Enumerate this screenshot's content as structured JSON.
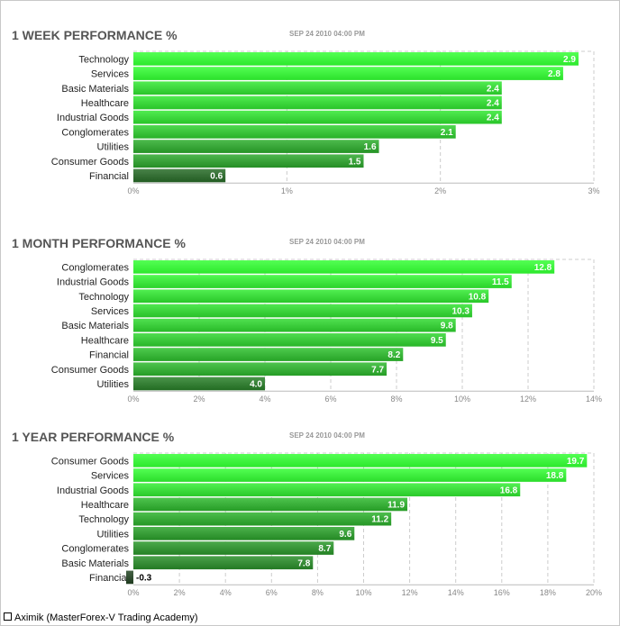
{
  "chart_data": [
    {
      "type": "bar",
      "orientation": "horizontal",
      "title": "1 WEEK PERFORMANCE %",
      "subtitle": "SEP 24 2010 04:00 PM",
      "categories": [
        "Technology",
        "Services",
        "Basic Materials",
        "Healthcare",
        "Industrial Goods",
        "Conglomerates",
        "Utilities",
        "Consumer Goods",
        "Financial"
      ],
      "values": [
        2.9,
        2.8,
        2.4,
        2.4,
        2.4,
        2.1,
        1.6,
        1.5,
        0.6
      ],
      "value_labels": [
        "2.9",
        "2.8",
        "2.4",
        "2.4",
        "2.4",
        "2.1",
        "1.6",
        "1.5",
        "0.6"
      ],
      "xlim": [
        0,
        3
      ],
      "xticks": [
        0,
        1,
        2,
        3
      ],
      "xtick_labels": [
        "0%",
        "1%",
        "2%",
        "3%"
      ],
      "grid": true
    },
    {
      "type": "bar",
      "orientation": "horizontal",
      "title": "1 MONTH PERFORMANCE %",
      "subtitle": "SEP 24 2010 04:00 PM",
      "categories": [
        "Conglomerates",
        "Industrial Goods",
        "Technology",
        "Services",
        "Basic Materials",
        "Healthcare",
        "Financial",
        "Consumer Goods",
        "Utilities"
      ],
      "values": [
        12.8,
        11.5,
        10.8,
        10.3,
        9.8,
        9.5,
        8.2,
        7.7,
        4.0
      ],
      "value_labels": [
        "12.8",
        "11.5",
        "10.8",
        "10.3",
        "9.8",
        "9.5",
        "8.2",
        "7.7",
        "4.0"
      ],
      "xlim": [
        0,
        14
      ],
      "xticks": [
        0,
        2,
        4,
        6,
        8,
        10,
        12,
        14
      ],
      "xtick_labels": [
        "0%",
        "2%",
        "4%",
        "6%",
        "8%",
        "10%",
        "12%",
        "14%"
      ],
      "grid": true
    },
    {
      "type": "bar",
      "orientation": "horizontal",
      "title": "1 YEAR PERFORMANCE %",
      "subtitle": "SEP 24 2010 04:00 PM",
      "categories": [
        "Consumer Goods",
        "Services",
        "Industrial Goods",
        "Healthcare",
        "Technology",
        "Utilities",
        "Conglomerates",
        "Basic Materials",
        "Financial"
      ],
      "values": [
        19.7,
        18.8,
        16.8,
        11.9,
        11.2,
        9.6,
        8.7,
        7.8,
        -0.3
      ],
      "value_labels": [
        "19.7",
        "18.8",
        "16.8",
        "11.9",
        "11.2",
        "9.6",
        "8.7",
        "7.8",
        "-0.3"
      ],
      "xlim": [
        0,
        20
      ],
      "xticks": [
        0,
        2,
        4,
        6,
        8,
        10,
        12,
        14,
        16,
        18,
        20
      ],
      "xtick_labels": [
        "0%",
        "2%",
        "4%",
        "6%",
        "8%",
        "10%",
        "12%",
        "14%",
        "16%",
        "18%",
        "20%"
      ],
      "grid": true
    }
  ],
  "footer": {
    "text": "Aximik (MasterForex-V Trading Academy)"
  }
}
